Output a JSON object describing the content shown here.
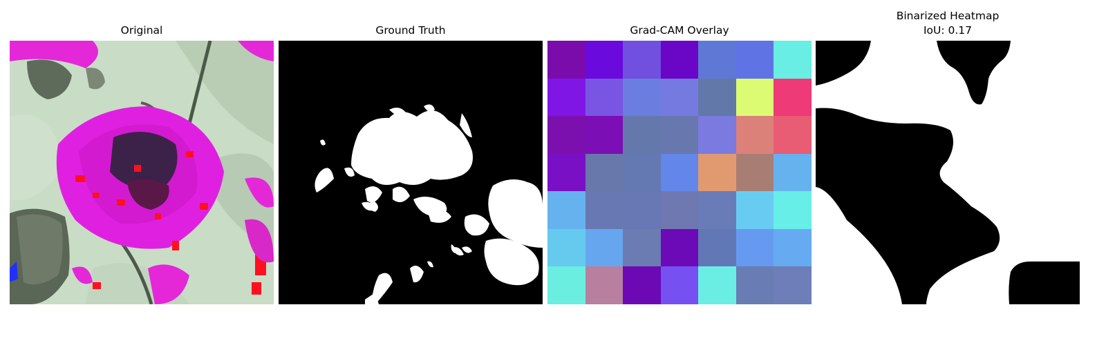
{
  "panels": [
    {
      "title": "Original",
      "image": "leaf-photo-color-distorted"
    },
    {
      "title": "Ground Truth",
      "image": "binary-lesion-mask"
    },
    {
      "title": "Grad-CAM Overlay",
      "image": "gradcam-7x7-heatmap"
    },
    {
      "title": "Binarized Heatmap",
      "subtitle": "IoU: 0.17",
      "image": "binarized-heatmap-mask"
    }
  ],
  "gradcam_grid": [
    [
      "#7a0cac",
      "#6a0adc",
      "#7150e0",
      "#6a06c6",
      "#5f78d6",
      "#5f73e5",
      "#68eee2"
    ],
    [
      "#8016e6",
      "#7a55e4",
      "#6b7ee0",
      "#757ae1",
      "#6278a8",
      "#dcfb73",
      "#ee3a76"
    ],
    [
      "#7c10ae",
      "#7b0fb5",
      "#6478ac",
      "#6878ae",
      "#7a7ae1",
      "#dc807a",
      "#e85c74"
    ],
    [
      "#7a10c6",
      "#6878aa",
      "#6478b2",
      "#6286e9",
      "#e19a70",
      "#a87e74",
      "#66b2ee"
    ],
    [
      "#66b2ee",
      "#6878b2",
      "#6878b4",
      "#7078b2",
      "#6a7cb8",
      "#68ccf2",
      "#68eee8"
    ],
    [
      "#66caee",
      "#66a6ee",
      "#6a7cb2",
      "#6c0ab8",
      "#6278b6",
      "#669af0",
      "#66aaf2"
    ],
    [
      "#6aeee0",
      "#b8809e",
      "#6c08b4",
      "#7650f0",
      "#6aeee4",
      "#6a7cb4",
      "#6e7eb8"
    ]
  ]
}
